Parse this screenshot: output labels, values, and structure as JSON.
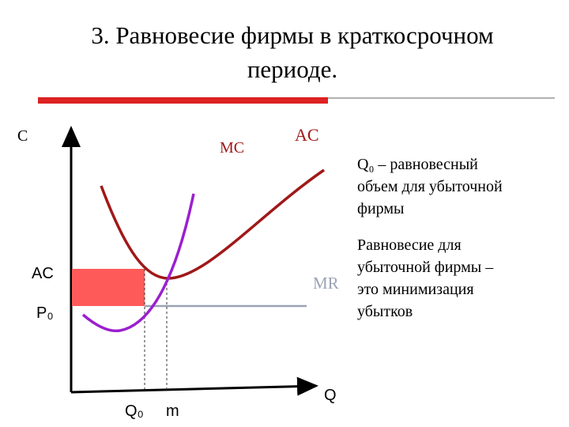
{
  "title": {
    "lines": [
      "3. Равновесие фирмы в краткосрочном",
      "периоде."
    ]
  },
  "axes": {
    "y_label": "C",
    "x_label": "Q"
  },
  "curves": {
    "mc": "MC",
    "ac": "AC",
    "mr": "MR"
  },
  "levels": {
    "ac": "AC",
    "p0": "P₀"
  },
  "quantities": {
    "q0": "Q₀",
    "m": "m"
  },
  "notes": [
    {
      "lines": [
        "Q₀ – равновесный",
        "объем для убыточной",
        "фирмы"
      ]
    },
    {
      "lines": [
        "Равновесие для",
        "убыточной фирмы –",
        "это минимизация",
        "убытков"
      ]
    }
  ]
}
